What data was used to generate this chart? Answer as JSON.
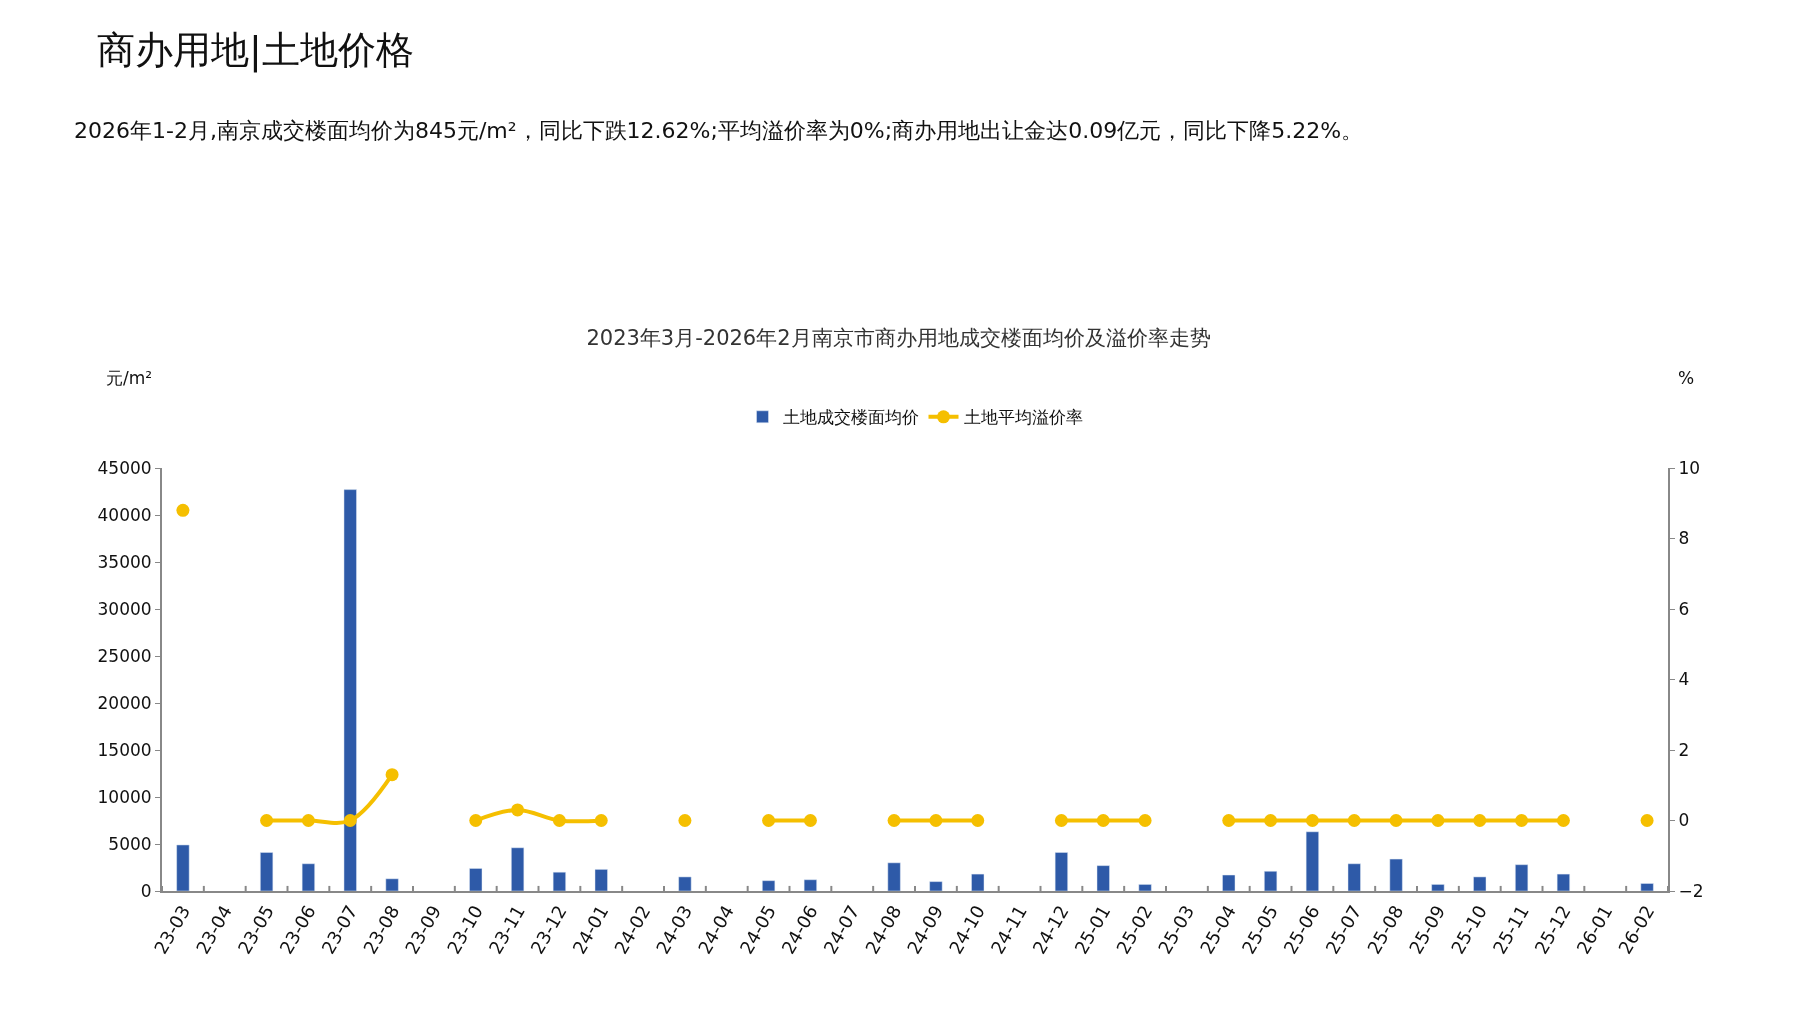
{
  "chart_data": {
    "type": "bar",
    "title": "2023年3月-2026年2月南京市商办用地成交楼面均价及溢价率走势",
    "annotations": [
      "商办用地|土地价格",
      "2026年1-2月,南京成交楼面均价为845元/m²，同比下跌12.62%;平均溢价率为0%;商办用地出让金达0.09亿元，同比下降5.22%。"
    ],
    "ylabel": "元/m²",
    "y2label": "%",
    "categories": [
      "23-03",
      "23-04",
      "23-05",
      "23-06",
      "23-07",
      "23-08",
      "23-09",
      "23-10",
      "23-11",
      "23-12",
      "24-01",
      "24-02",
      "24-03",
      "24-04",
      "24-05",
      "24-06",
      "24-07",
      "24-08",
      "24-09",
      "24-10",
      "24-11",
      "24-12",
      "25-01",
      "25-02",
      "25-03",
      "25-04",
      "25-05",
      "25-06",
      "25-07",
      "25-08",
      "25-09",
      "25-10",
      "25-11",
      "25-12",
      "26-01",
      "26-02"
    ],
    "series": [
      {
        "name": "土地成交楼面均价",
        "color": "#2e5aa8",
        "values": [
          4900,
          null,
          4100,
          2900,
          42700,
          1300,
          null,
          2400,
          4600,
          2000,
          2300,
          null,
          1500,
          null,
          1100,
          1200,
          null,
          3000,
          1000,
          1800,
          null,
          4100,
          2700,
          700,
          null,
          1700,
          2100,
          6300,
          2900,
          3400,
          700,
          1500,
          2800,
          1800,
          null,
          800
        ]
      },
      {
        "name": "土地平均溢价率",
        "type": "line",
        "axis": "y2",
        "color": "#f5bf00",
        "marker": "circle",
        "values": [
          8.8,
          null,
          0,
          0,
          0,
          1.3,
          null,
          0,
          0.3,
          0,
          0,
          null,
          0,
          null,
          0,
          0,
          null,
          0,
          0,
          0,
          null,
          0,
          0,
          0,
          null,
          0,
          0,
          0,
          0,
          0,
          0,
          0,
          0,
          0,
          null,
          0
        ]
      }
    ],
    "ylim": [
      0,
      45000
    ],
    "yticks": [
      0,
      5000,
      10000,
      15000,
      20000,
      25000,
      30000,
      35000,
      40000,
      45000
    ],
    "y2lim": [
      -2,
      10
    ],
    "y2ticks": [
      {
        "value": -2,
        "label": "−2"
      },
      0,
      2,
      4,
      6,
      8,
      10
    ],
    "legend": "top"
  }
}
